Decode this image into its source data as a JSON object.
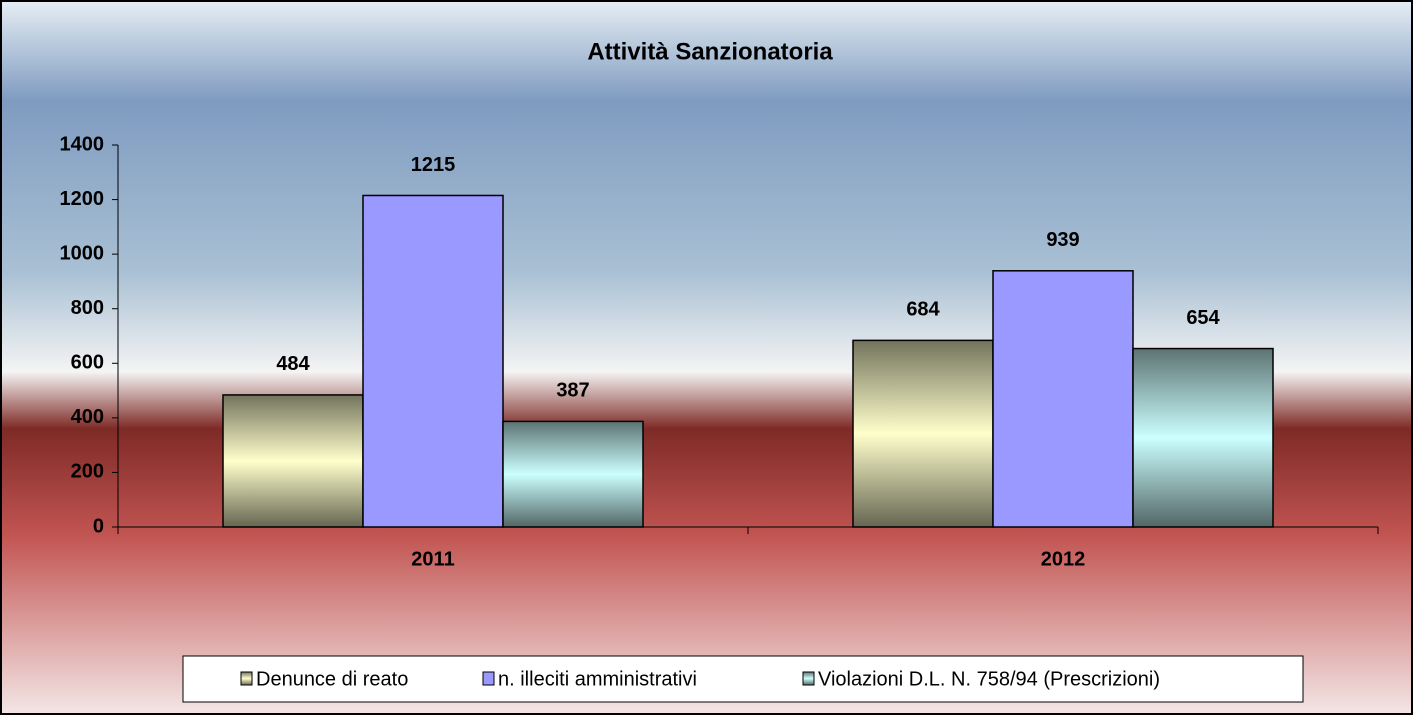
{
  "chart_data": {
    "type": "bar",
    "title": "Attività Sanzionatoria",
    "categories": [
      "2011",
      "2012"
    ],
    "series": [
      {
        "name": "Denunce di reato",
        "color": "#ffffcc",
        "values": [
          484,
          684
        ]
      },
      {
        "name": "n. illeciti amministrativi",
        "color": "#9999ff",
        "values": [
          1215,
          939
        ]
      },
      {
        "name": "Violazioni D.L. N.  758/94 (Prescrizioni)",
        "color": "#ccffff",
        "values": [
          387,
          654
        ]
      }
    ],
    "ylim": [
      0,
      1400
    ],
    "yticks": [
      0,
      200,
      400,
      600,
      800,
      1000,
      1200,
      1400
    ],
    "grid": false,
    "legend": "bottom"
  }
}
